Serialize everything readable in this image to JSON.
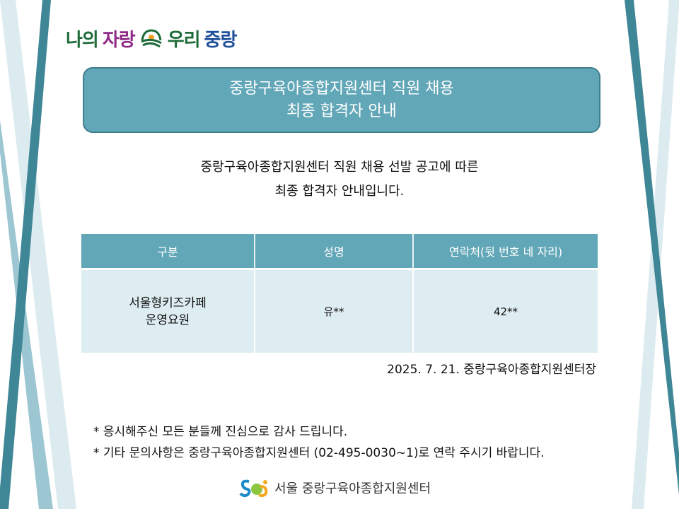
{
  "logo": {
    "part1": "나의",
    "part2": "자랑",
    "part3": "우리",
    "part4": "중랑",
    "colors": {
      "green": "#1f6b3a",
      "purple": "#8e2a86",
      "blue": "#1f4f9a"
    }
  },
  "title": {
    "line1": "중랑구육아종합지원센터 직원 채용",
    "line2": "최종 합격자 안내"
  },
  "intro": {
    "line1": "중랑구육아종합지원센터 직원 채용 선발 공고에 따른",
    "line2": "최종 합격자 안내입니다."
  },
  "table": {
    "headers": [
      "구분",
      "성명",
      "연락처(뒷 번호 네 자리)"
    ],
    "rows": [
      {
        "category_line1": "서울형키즈카페",
        "category_line2": "운영요원",
        "name": "유**",
        "contact": "42**"
      }
    ]
  },
  "date_signature": "2025. 7. 21. 중랑구육아종합지원센터장",
  "notes": [
    "* 응시해주신 모든 분들께 진심으로 감사 드립니다.",
    "* 기타 문의사항은 중랑구육아종합지원센터 (02-495-0030~1)로 연락 주시기 바랍니다."
  ],
  "footer": {
    "org_name": "서울 중랑구육아종합지원센터"
  },
  "colors": {
    "accent": "#62a7b7",
    "dark_stripe": "#3f8797",
    "table_body": "#deedf1"
  }
}
